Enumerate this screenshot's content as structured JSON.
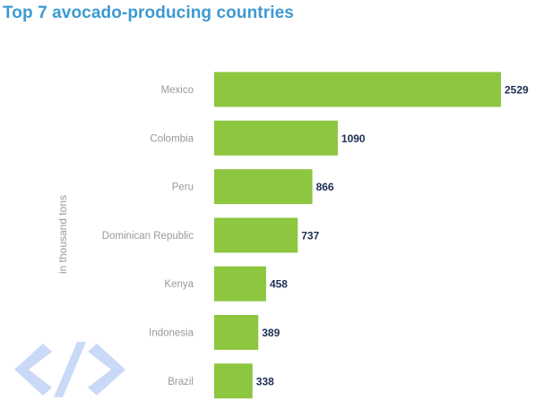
{
  "title": "Top 7 avocado-producing countries",
  "chart_data": {
    "type": "bar",
    "orientation": "horizontal",
    "title": "Top 7 avocado-producing countries",
    "ylabel": "in thousand tons",
    "xlabel": "",
    "categories": [
      "Mexico",
      "Colombia",
      "Peru",
      "Dominican Republic",
      "Kenya",
      "Indonesia",
      "Brazil"
    ],
    "values": [
      2529,
      1090,
      866,
      737,
      458,
      389,
      338
    ],
    "xlim": [
      0,
      2529
    ],
    "grid": false,
    "legend": "none",
    "bar_color": "#8dc63f",
    "value_label_color": "#1d2f52",
    "title_color": "#3d9ad1"
  },
  "watermark_icon": "code-brackets-icon"
}
